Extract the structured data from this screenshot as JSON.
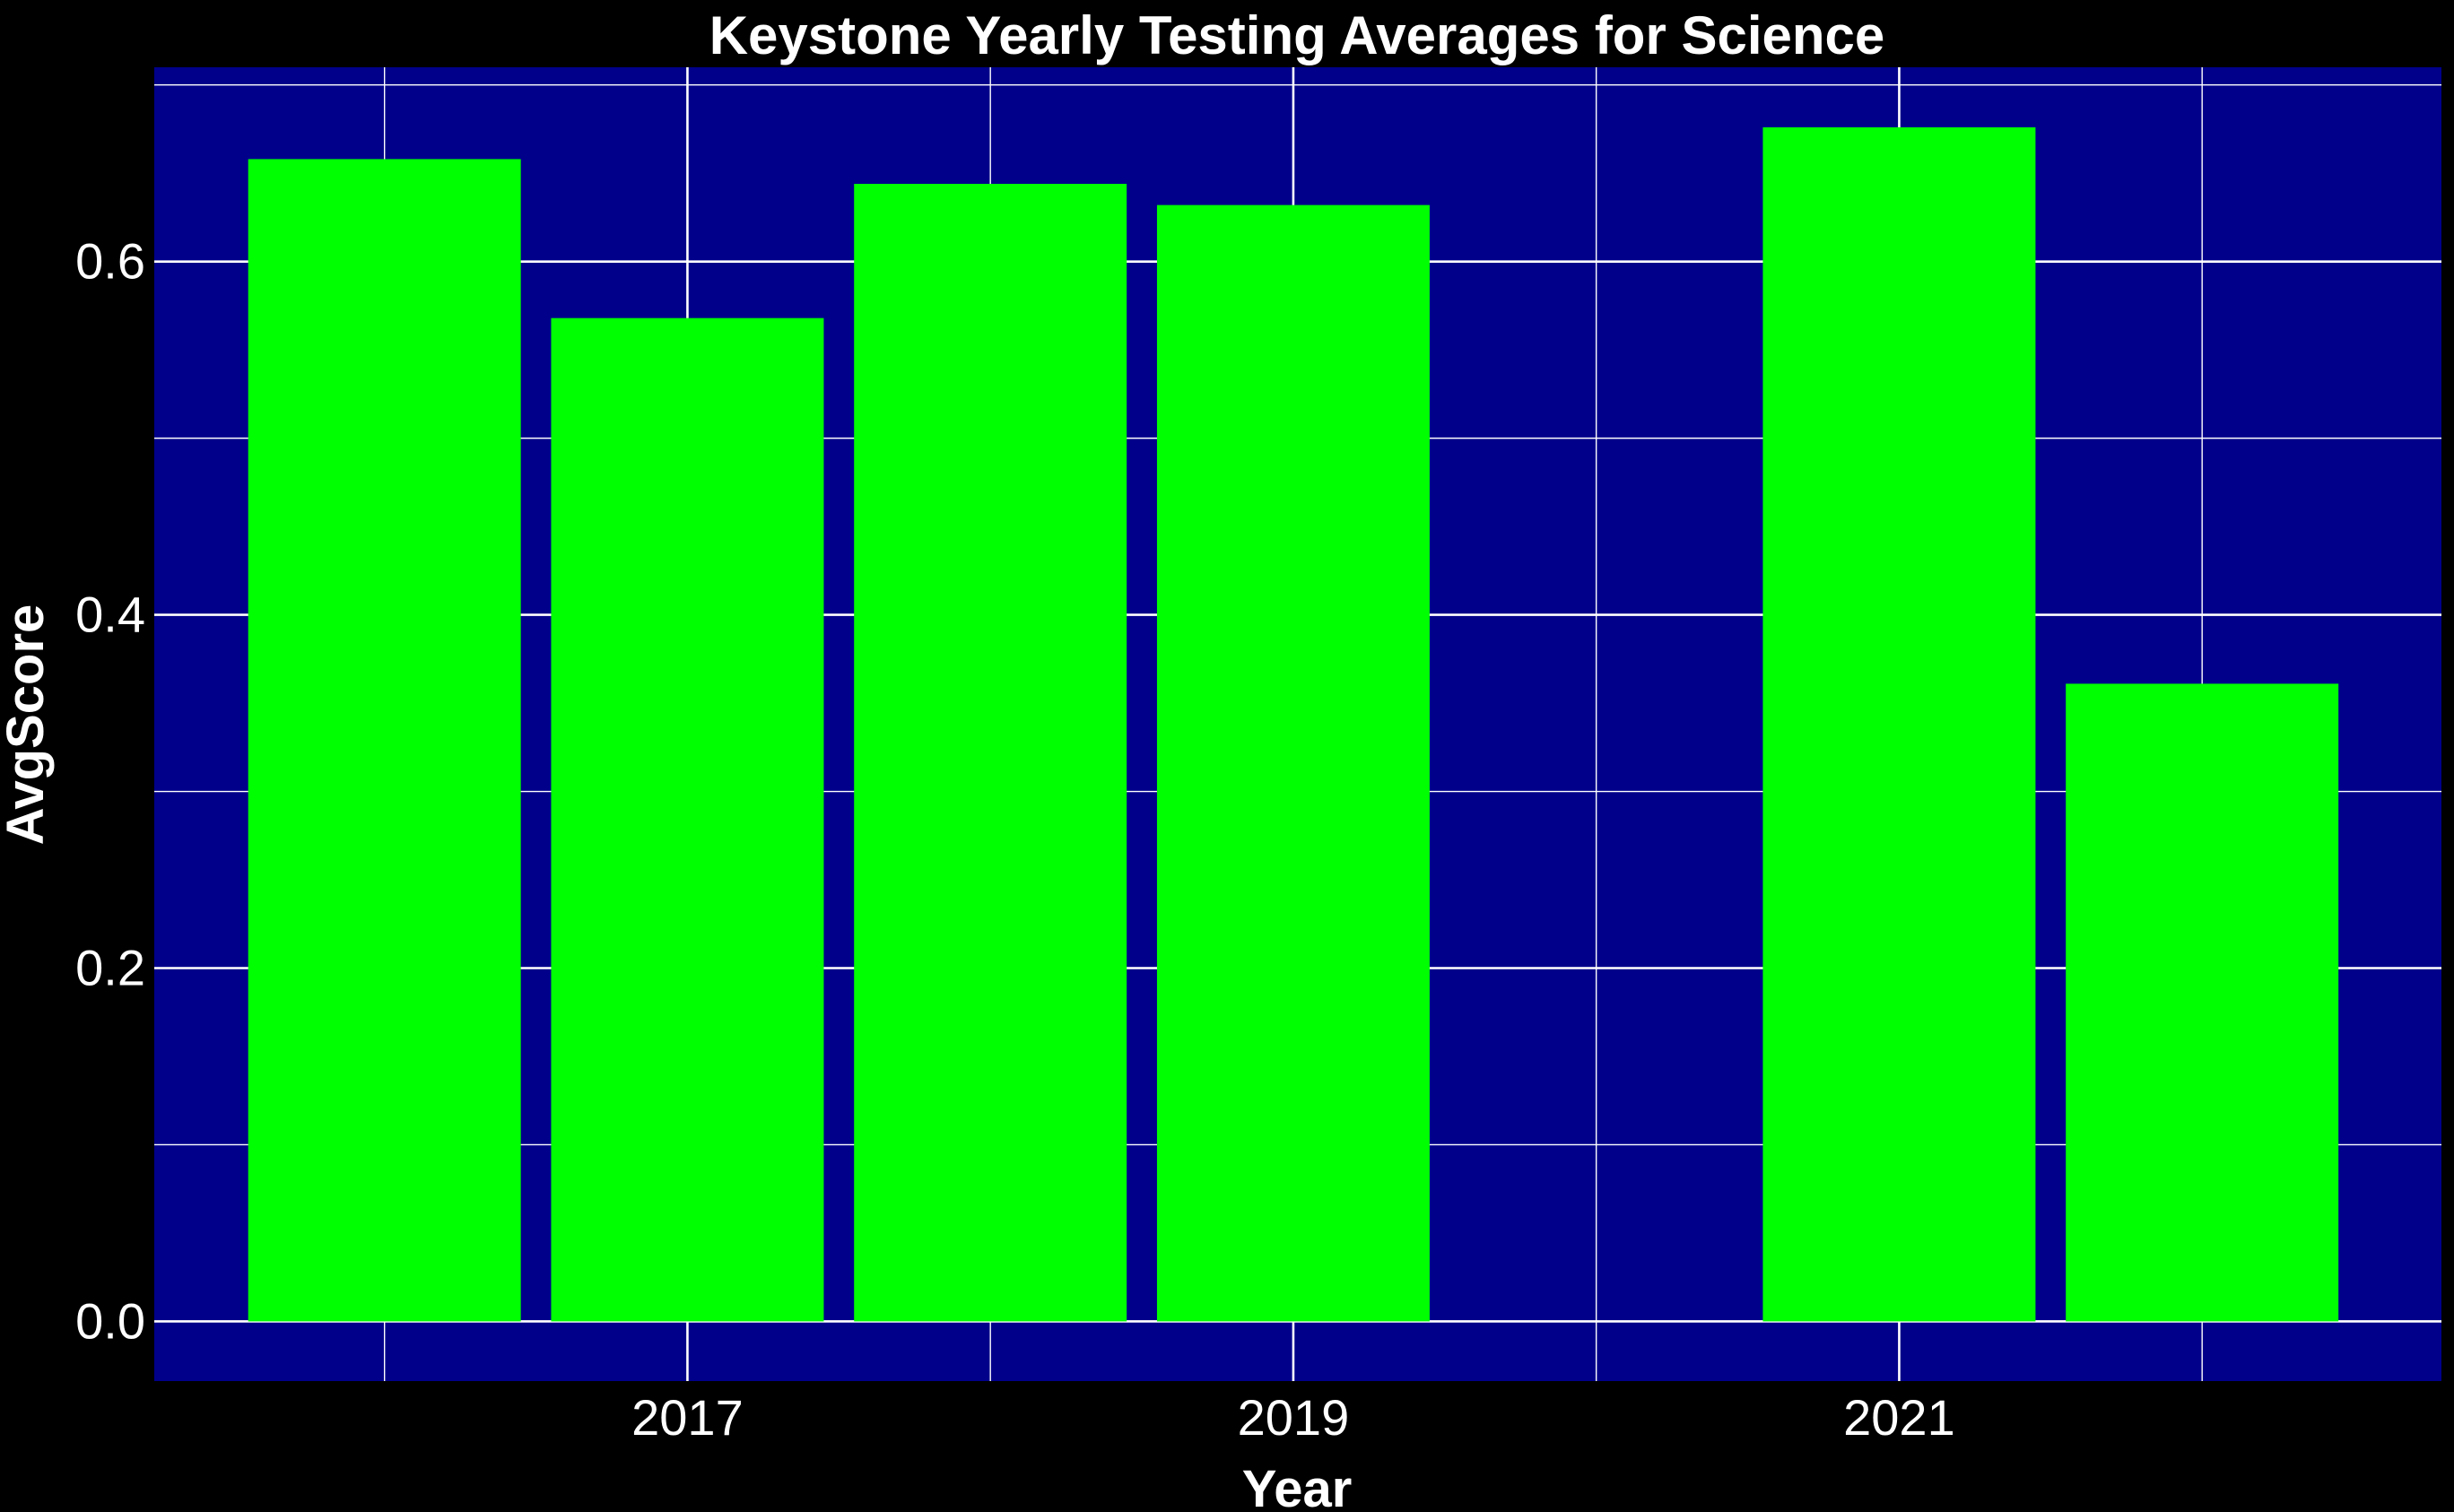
{
  "chart_data": {
    "type": "bar",
    "title": "Keystone Yearly Testing Averages for Science",
    "xlabel": "Year",
    "ylabel": "AvgScore",
    "categories": [
      2016,
      2017,
      2018,
      2019,
      2021,
      2022
    ],
    "values": [
      0.658,
      0.568,
      0.644,
      0.632,
      0.676,
      0.361
    ],
    "x_range": [
      2015.24,
      2022.79
    ],
    "x_ticks": [
      2017,
      2019,
      2021
    ],
    "x_tick_labels": [
      "2017",
      "2019",
      "2021"
    ],
    "ylim": [
      -0.0338,
      0.71
    ],
    "y_ticks": [
      0.0,
      0.2,
      0.4,
      0.6
    ],
    "y_tick_labels": [
      "0.0",
      "0.2",
      "0.4",
      "0.6"
    ],
    "bar_width_years": 0.9,
    "grid": true,
    "legend": "none",
    "colors": {
      "background": "#000000",
      "panel": "#00008B",
      "bar": "#00FF00",
      "grid": "#FFFFFF",
      "text": "#FFFFFF"
    }
  }
}
